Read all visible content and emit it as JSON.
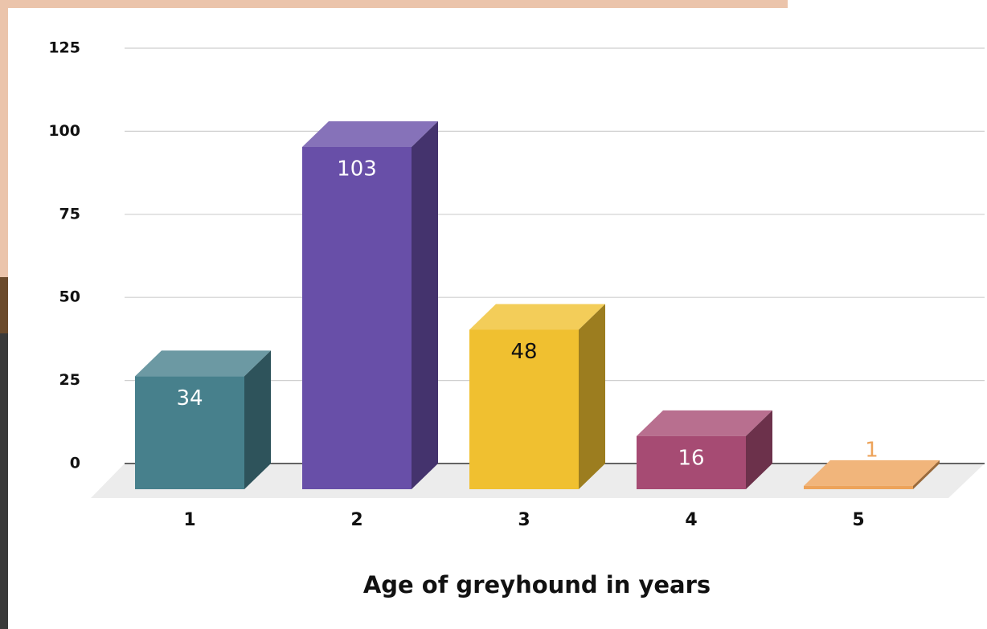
{
  "chart_data": {
    "type": "bar3d",
    "categories": [
      "1",
      "2",
      "3",
      "4",
      "5"
    ],
    "values": [
      34,
      103,
      48,
      16,
      1
    ],
    "colors": [
      "#47808c",
      "#684fa8",
      "#f0c030",
      "#a64b73",
      "#eda35a"
    ],
    "label_colors": [
      "#ffffff",
      "#ffffff",
      "#111111",
      "#ffffff",
      "#eda35a"
    ],
    "ylim": [
      0,
      125
    ],
    "yticks": [
      0,
      25,
      50,
      75,
      100,
      125
    ],
    "grid": true,
    "x_label": "Age of greyhound in years"
  }
}
